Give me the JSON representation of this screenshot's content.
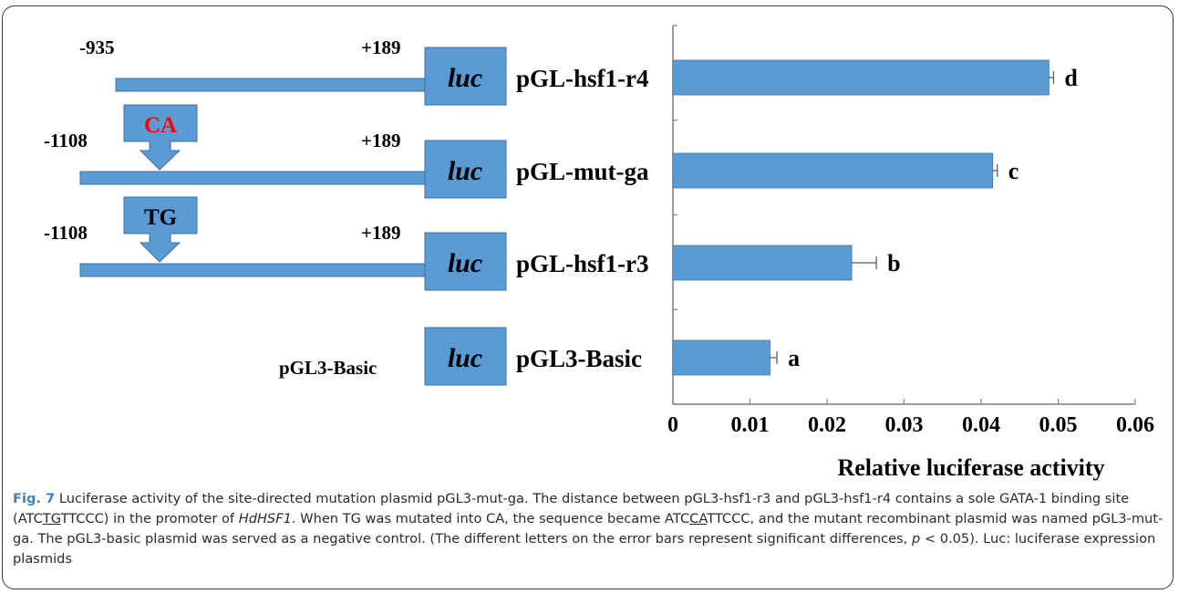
{
  "colors": {
    "bar": "#5b9bd5",
    "bar_stroke": "#41719c",
    "construct": "#5b9bd5",
    "mutation_red": "#ff0000",
    "text": "#000000"
  },
  "constructs": [
    {
      "id": "r4",
      "left_label": "-935",
      "right_label": "+189",
      "box_label": "luc",
      "name": "pGL-hsf1-r4",
      "marker": null
    },
    {
      "id": "mut",
      "left_label": "-1108",
      "right_label": "+189",
      "box_label": "luc",
      "name": "pGL-mut-ga",
      "marker": "CA"
    },
    {
      "id": "r3",
      "left_label": "-1108",
      "right_label": "+189",
      "box_label": "luc",
      "name": "pGL-hsf1-r3",
      "marker": "TG"
    },
    {
      "id": "basic",
      "left_label": "pGL3-Basic",
      "right_label": "",
      "box_label": "luc",
      "name": "pGL3-Basic",
      "marker": null
    }
  ],
  "chart_data": {
    "type": "bar",
    "orientation": "horizontal",
    "categories": [
      "pGL-hsf1-r4",
      "pGL-mut-ga",
      "pGL-hsf1-r3",
      "pGL3-Basic"
    ],
    "values": [
      0.0488,
      0.0415,
      0.0232,
      0.0126
    ],
    "errors": [
      0.0006,
      0.0006,
      0.0032,
      0.0009
    ],
    "significance": [
      "d",
      "c",
      "b",
      "a"
    ],
    "xlabel": "Relative luciferase activity",
    "xlim": [
      0,
      0.06
    ],
    "xticks": [
      "0",
      "0.01",
      "0.02",
      "0.03",
      "0.04",
      "0.05",
      "0.06"
    ],
    "grid": false
  },
  "caption": {
    "label": "Fig. 7",
    "t1": " Luciferase activity of the site-directed mutation plasmid pGL3-mut-ga. The distance between pGL3-hsf1-r3 and pGL3-hsf1-r4 contains a sole GATA-1 binding site (ATC",
    "u1": "TG",
    "t2": "TTCCC) in the promoter of ",
    "gene": "HdHSF1",
    "t3": ". When TG was mutated into CA, the sequence became ATC",
    "u2": "CA",
    "t4": "TTCCC, and the mutant recombinant plasmid was named pGL3-mut-ga. The pGL3-basic plasmid was served as a negative control. (The different letters on the error bars represent significant differences, ",
    "p": "p",
    "t5": " < 0.05). Luc: luciferase expression plasmids"
  }
}
